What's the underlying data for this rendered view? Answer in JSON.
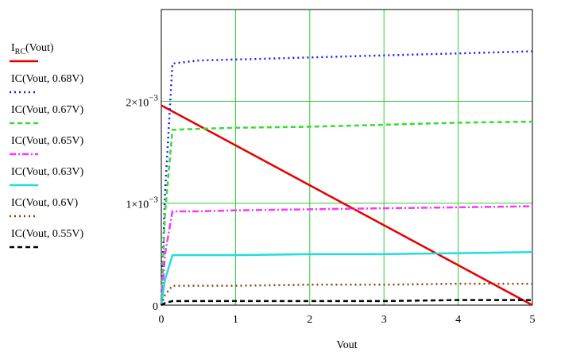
{
  "chart_data": {
    "type": "line",
    "xlabel": "Vout",
    "ylabel": "",
    "xlim": [
      0,
      5
    ],
    "ylim": [
      0,
      0.0029
    ],
    "grid": true,
    "grid_color": "#33cc33",
    "legend_position": "left",
    "x_ticks": [
      {
        "value": 0,
        "label": "0"
      },
      {
        "value": 1,
        "label": "1"
      },
      {
        "value": 2,
        "label": "2"
      },
      {
        "value": 3,
        "label": "3"
      },
      {
        "value": 4,
        "label": "4"
      },
      {
        "value": 5,
        "label": "5"
      }
    ],
    "y_ticks": [
      {
        "value": 0,
        "mantissa": "0",
        "exponent": ""
      },
      {
        "value": 0.001,
        "mantissa": "1×10",
        "exponent": "−3"
      },
      {
        "value": 0.002,
        "mantissa": "2×10",
        "exponent": "−3"
      }
    ],
    "series": [
      {
        "name_main": "I",
        "name_sub": "RC",
        "name_rest": "(Vout)",
        "color": "#e60000",
        "dash": "solid",
        "x": [
          0,
          5
        ],
        "y": [
          0.00196,
          0.0
        ]
      },
      {
        "name_main": "IC(Vout, 0.68V)",
        "name_sub": "",
        "name_rest": "",
        "color": "#1a1aff",
        "dash": "dot",
        "x": [
          0,
          0.05,
          0.15,
          0.5,
          1,
          2,
          3,
          4,
          5
        ],
        "y": [
          0,
          0.0011,
          0.00237,
          0.0024,
          0.00241,
          0.00243,
          0.00245,
          0.00247,
          0.00249
        ]
      },
      {
        "name_main": "IC(Vout, 0.67V)",
        "name_sub": "",
        "name_rest": "",
        "color": "#33dd33",
        "dash": "dash",
        "x": [
          0,
          0.05,
          0.15,
          0.5,
          1,
          2,
          3,
          4,
          5
        ],
        "y": [
          0,
          0.0009,
          0.00172,
          0.00173,
          0.00174,
          0.00175,
          0.00177,
          0.00179,
          0.0018
        ]
      },
      {
        "name_main": "IC(Vout, 0.65V)",
        "name_sub": "",
        "name_rest": "",
        "color": "#ff33ff",
        "dash": "dashdot",
        "x": [
          0,
          0.05,
          0.15,
          0.5,
          1,
          2,
          3,
          4,
          5
        ],
        "y": [
          0,
          0.0005,
          0.00092,
          0.00092,
          0.00093,
          0.00094,
          0.00095,
          0.00096,
          0.00097
        ]
      },
      {
        "name_main": "IC(Vout, 0.63V)",
        "name_sub": "",
        "name_rest": "",
        "color": "#22dddd",
        "dash": "solid",
        "x": [
          0,
          0.05,
          0.15,
          1,
          2,
          3,
          4,
          5
        ],
        "y": [
          0,
          0.00025,
          0.00049,
          0.00049,
          0.0005,
          0.0005,
          0.00051,
          0.00052
        ]
      },
      {
        "name_main": "IC(Vout, 0.6V)",
        "name_sub": "",
        "name_rest": "",
        "color": "#8b4513",
        "dash": "dot",
        "x": [
          0,
          0.05,
          0.15,
          1,
          2,
          3,
          4,
          5
        ],
        "y": [
          0,
          0.0001,
          0.00019,
          0.00019,
          0.0002,
          0.0002,
          0.00021,
          0.00021
        ]
      },
      {
        "name_main": "IC(Vout, 0.55V)",
        "name_sub": "",
        "name_rest": "",
        "color": "#000000",
        "dash": "dash",
        "x": [
          0,
          0.05,
          0.15,
          1,
          2,
          3,
          4,
          5
        ],
        "y": [
          0,
          2e-05,
          4e-05,
          4e-05,
          4e-05,
          4e-05,
          5e-05,
          5e-05
        ]
      }
    ]
  }
}
